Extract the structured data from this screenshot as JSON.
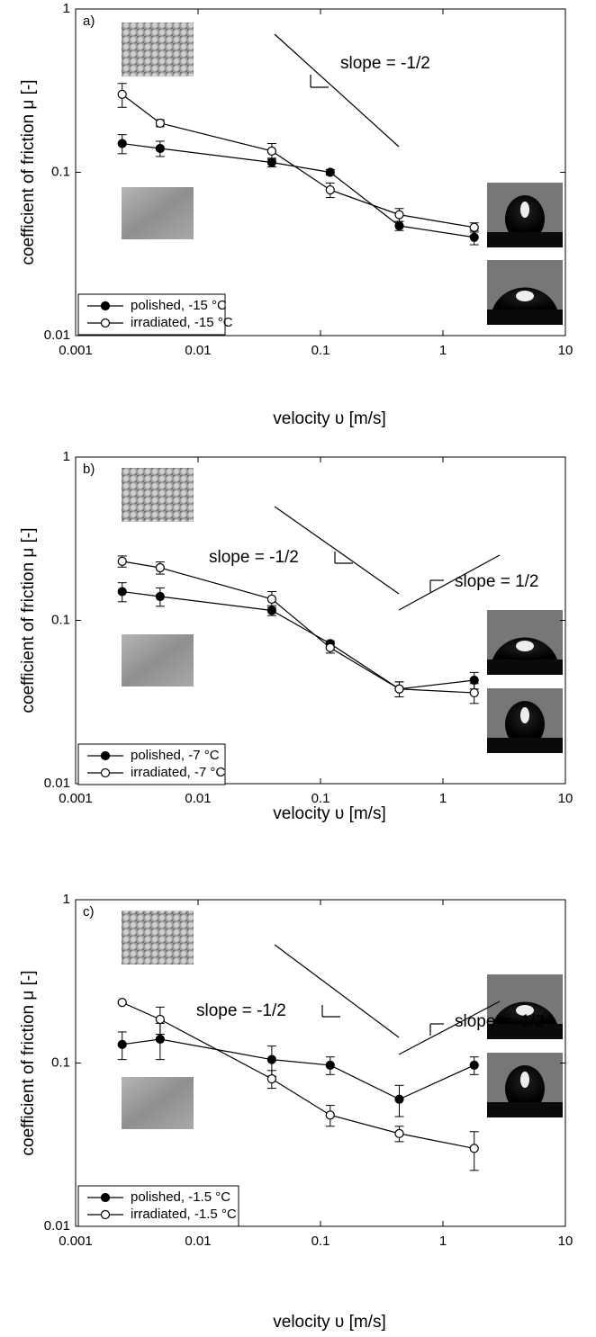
{
  "chart_data": [
    {
      "type": "line",
      "panel_label": "a)",
      "xlabel": "velocity υ [m/s]",
      "ylabel": "coefficient of friction μ [-]",
      "xlog": true,
      "ylog": true,
      "xlim": [
        0.001,
        10
      ],
      "ylim": [
        0.01,
        1
      ],
      "xticks": [
        0.001,
        0.01,
        0.1,
        1,
        10
      ],
      "yticks": [
        0.01,
        0.1,
        1
      ],
      "annotations": [
        "slope = -1/2"
      ],
      "x": [
        0.0024,
        0.0049,
        0.04,
        0.12,
        0.44,
        1.8
      ],
      "series": [
        {
          "name": "polished, -15 °C",
          "color": "#000000",
          "marker_fill": "#000000",
          "values": [
            0.15,
            0.14,
            0.115,
            0.1,
            0.047,
            0.04
          ],
          "errors": [
            0.02,
            0.015,
            0.007,
            0.004,
            0.003,
            0.004
          ]
        },
        {
          "name": "irradiated, -15 °C",
          "color": "#000000",
          "marker_fill": "#ffffff",
          "values": [
            0.3,
            0.2,
            0.135,
            0.078,
            0.055,
            0.046
          ],
          "errors": [
            0.05,
            0.01,
            0.015,
            0.008,
            0.005,
            0.003
          ]
        }
      ]
    },
    {
      "type": "line",
      "panel_label": "b)",
      "xlabel": "velocity υ [m/s]",
      "ylabel": "coefficient of friction μ [-]",
      "xlog": true,
      "ylog": true,
      "xlim": [
        0.001,
        10
      ],
      "ylim": [
        0.01,
        1
      ],
      "xticks": [
        0.001,
        0.01,
        0.1,
        1,
        10
      ],
      "yticks": [
        0.01,
        0.1,
        1
      ],
      "annotations": [
        "slope = -1/2",
        "slope = 1/2"
      ],
      "x": [
        0.0024,
        0.0049,
        0.04,
        0.12,
        0.44,
        1.8
      ],
      "series": [
        {
          "name": "polished, -7 °C",
          "color": "#000000",
          "marker_fill": "#000000",
          "values": [
            0.15,
            0.14,
            0.115,
            0.072,
            0.038,
            0.043
          ],
          "errors": [
            0.02,
            0.018,
            0.008,
            0.003,
            0.004,
            0.005
          ]
        },
        {
          "name": "irradiated, -7 °C",
          "color": "#000000",
          "marker_fill": "#ffffff",
          "values": [
            0.23,
            0.21,
            0.135,
            0.068,
            0.038,
            0.036
          ],
          "errors": [
            0.018,
            0.018,
            0.015,
            0.005,
            0.004,
            0.005
          ]
        }
      ]
    },
    {
      "type": "line",
      "panel_label": "c)",
      "xlabel": "velocity υ [m/s]",
      "ylabel": "coefficient of friction μ [-]",
      "xlog": true,
      "ylog": true,
      "xlim": [
        0.001,
        10
      ],
      "ylim": [
        0.01,
        1
      ],
      "xticks": [
        0.001,
        0.01,
        0.1,
        1,
        10
      ],
      "yticks": [
        0.01,
        0.1,
        1
      ],
      "annotations": [
        "slope = -1/2",
        "slope = -1/2"
      ],
      "x": [
        0.0024,
        0.0049,
        0.04,
        0.12,
        0.44,
        1.8
      ],
      "series": [
        {
          "name": "polished, -1.5 °C",
          "color": "#000000",
          "marker_fill": "#000000",
          "values": [
            0.13,
            0.14,
            0.105,
            0.097,
            0.06,
            0.097
          ],
          "errors": [
            0.025,
            0.035,
            0.022,
            0.012,
            0.013,
            0.012
          ]
        },
        {
          "name": "irradiated, -1.5 °C",
          "color": "#000000",
          "marker_fill": "#ffffff",
          "values": [
            0.235,
            0.185,
            0.08,
            0.048,
            0.037,
            0.03
          ],
          "errors": [
            0.003,
            0.035,
            0.01,
            0.007,
            0.004,
            0.008
          ]
        }
      ]
    }
  ]
}
